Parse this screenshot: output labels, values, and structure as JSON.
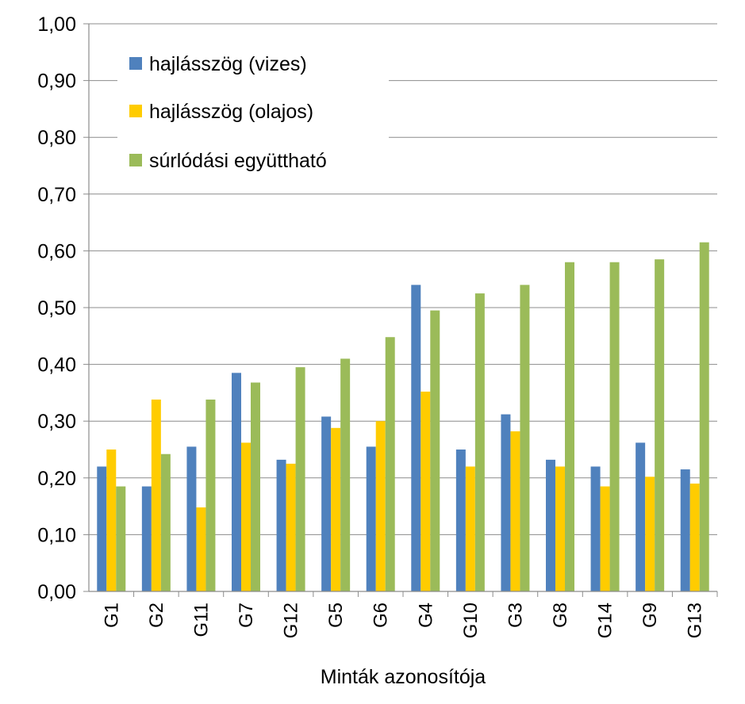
{
  "chart_data": {
    "type": "bar",
    "title": "",
    "xlabel": "Minták azonosítója",
    "ylabel": "",
    "ylim": [
      0,
      1
    ],
    "ytick_step": 0.1,
    "ytick_labels": [
      "0,00",
      "0,10",
      "0,20",
      "0,30",
      "0,40",
      "0,50",
      "0,60",
      "0,70",
      "0,80",
      "0,90",
      "1,00"
    ],
    "grid": true,
    "legend_position": "top-left",
    "categories": [
      "G1",
      "G2",
      "G11",
      "G7",
      "G12",
      "G5",
      "G6",
      "G4",
      "G10",
      "G3",
      "G8",
      "G14",
      "G9",
      "G13"
    ],
    "series": [
      {
        "name": "hajlásszög (vizes)",
        "color": "#4F81BD",
        "values": [
          0.22,
          0.185,
          0.255,
          0.385,
          0.232,
          0.308,
          0.255,
          0.54,
          0.25,
          0.312,
          0.232,
          0.22,
          0.262,
          0.215
        ]
      },
      {
        "name": "hajlásszög (olajos)",
        "color": "#FFCC00",
        "values": [
          0.25,
          0.338,
          0.148,
          0.262,
          0.225,
          0.288,
          0.3,
          0.352,
          0.22,
          0.282,
          0.22,
          0.185,
          0.202,
          0.19
        ]
      },
      {
        "name": "súrlódási együttható",
        "color": "#9BBB59",
        "values": [
          0.185,
          0.242,
          0.338,
          0.368,
          0.395,
          0.41,
          0.448,
          0.495,
          0.525,
          0.54,
          0.58,
          0.58,
          0.585,
          0.615
        ]
      }
    ]
  }
}
